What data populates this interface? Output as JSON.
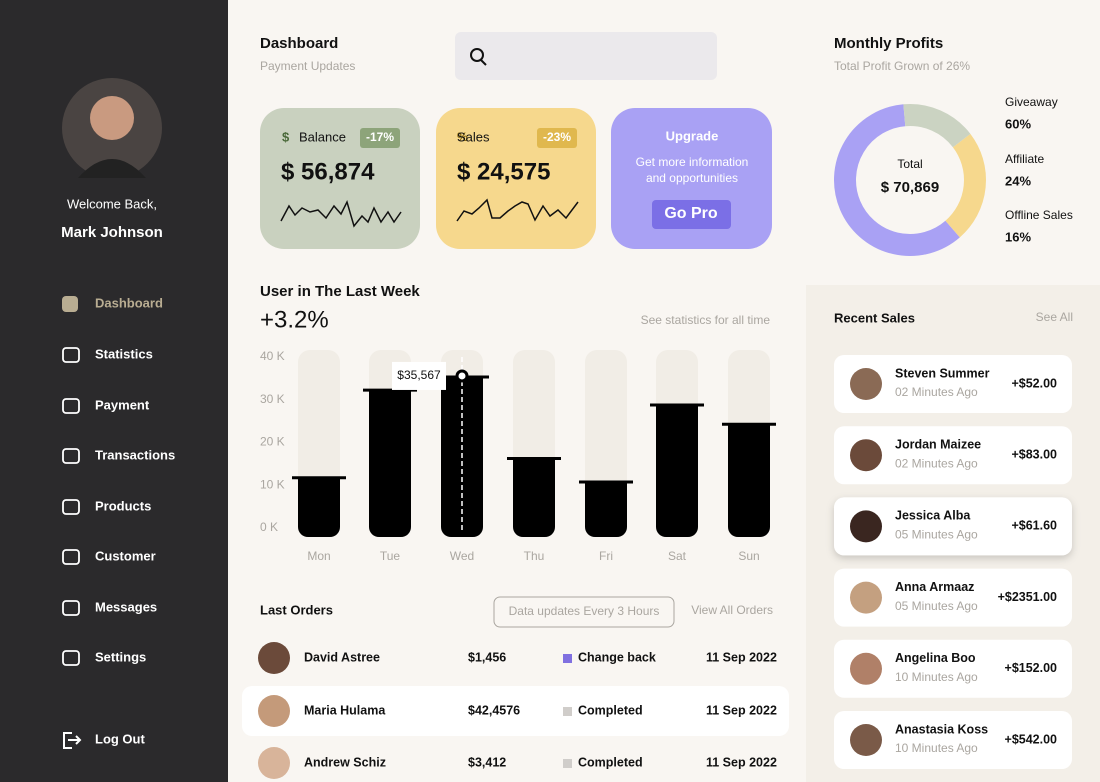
{
  "sidebar": {
    "welcome": "Welcome Back,",
    "name": "Mark Johnson",
    "menu": [
      "Dashboard",
      "Statistics",
      "Payment",
      "Transactions",
      "Products",
      "Customer",
      "Messages",
      "Settings"
    ],
    "logout": "Log Out"
  },
  "header": {
    "title": "Dashboard",
    "subtitle": "Payment Updates"
  },
  "cards": [
    {
      "label": "Balance",
      "change": "-17%",
      "amount": "$ 56,874"
    },
    {
      "label": "Sales",
      "change": "-23%",
      "amount": "$ 24,575"
    }
  ],
  "upgrade": {
    "title": "Upgrade",
    "text": [
      "Get more information",
      "and opportunities"
    ],
    "button": "Go Pro"
  },
  "profits": {
    "title": "Monthly Profits",
    "subtitle": "Total Profit Grown of 26%",
    "total_label": "Total",
    "total": "$ 70,869",
    "chart": {
      "type": "donut",
      "categories": [
        "Giveaway",
        "Affiliate",
        "Offline Sales"
      ],
      "values": [
        60,
        24,
        16
      ],
      "value_labels": [
        "60%",
        "24%",
        "16%"
      ],
      "colors": [
        "#a9a1f4",
        "#f6d88d",
        "#cbd3c2"
      ]
    }
  },
  "users": {
    "title": "User in The Last Week",
    "change": "+3.2%",
    "link": "See statistics for all time",
    "chart": {
      "type": "bar",
      "categories": [
        "Mon",
        "Tue",
        "Wed",
        "Thu",
        "Fri",
        "Sat",
        "Sun"
      ],
      "values": [
        12,
        32.5,
        35.567,
        16.5,
        11,
        29,
        24.5
      ],
      "value_labels": [
        null,
        null,
        "$35,567",
        null,
        null,
        null,
        null
      ],
      "color": "#000000",
      "ylim": [
        0,
        40
      ],
      "yticks": [
        {
          "value": 0,
          "label": "0 K"
        },
        {
          "value": 10,
          "label": "10 K"
        },
        {
          "value": 20,
          "label": "20 K"
        },
        {
          "value": 30,
          "label": "30 K"
        },
        {
          "value": 40,
          "label": "40 K"
        }
      ]
    }
  },
  "orders": {
    "title": "Last Orders",
    "badge": "Data updates Every 3 Hours",
    "link": "View All Orders",
    "rows": [
      [
        "David Astree",
        "$1,456",
        "Change back",
        "11 Sep 2022"
      ],
      [
        "Maria Hulama",
        "$42,4576",
        "Completed",
        "11 Sep 2022"
      ],
      [
        "Andrew Schiz",
        "$3,412",
        "Completed",
        "11 Sep 2022"
      ]
    ]
  },
  "recent": {
    "title": "Recent Sales",
    "link": "See All",
    "items": [
      [
        "Steven Summer",
        "02 Minutes Ago",
        "+$52.00"
      ],
      [
        "Jordan Maizee",
        "02 Minutes Ago",
        "+$83.00"
      ],
      [
        "Jessica Alba",
        "05 Minutes Ago",
        "+$61.60"
      ],
      [
        "Anna Armaaz",
        "05 Minutes Ago",
        "+$2351.00"
      ],
      [
        "Angelina Boo",
        "10 Minutes Ago",
        "+$152.00"
      ],
      [
        "Anastasia Koss",
        "10 Minutes Ago",
        "+$542.00"
      ]
    ]
  }
}
